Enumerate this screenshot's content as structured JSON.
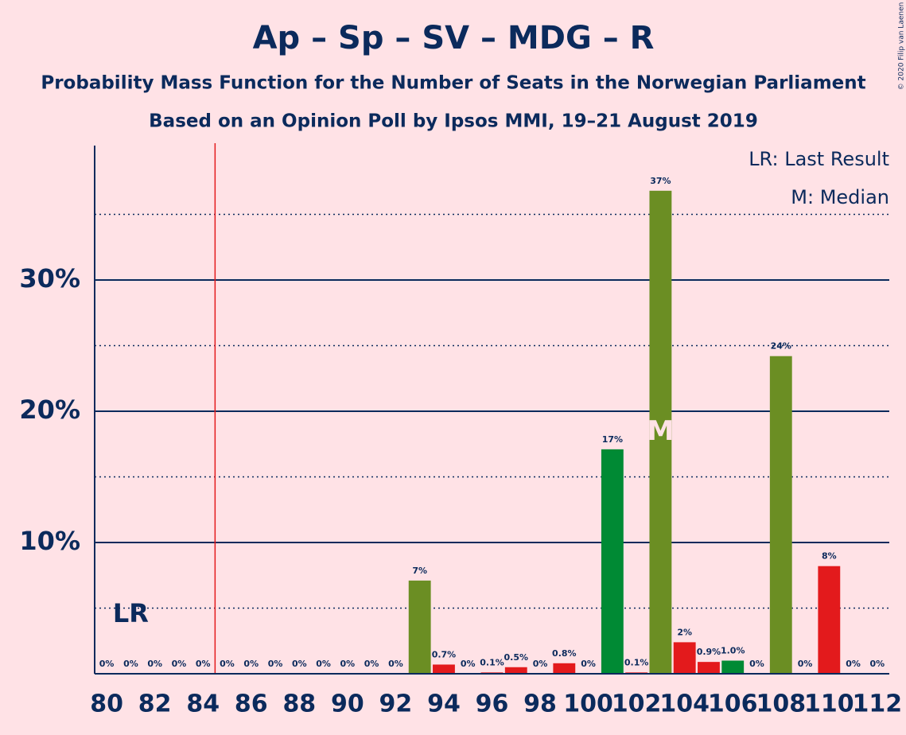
{
  "chart_data": {
    "type": "bar",
    "title": "Ap – Sp – SV – MDG – R",
    "subtitle": "Probability Mass Function for the Number of Seats in the Norwegian Parliament",
    "subtitle2": "Based on an Opinion Poll by Ipsos MMI, 19–21 August 2019",
    "x": [
      80,
      81,
      82,
      83,
      84,
      85,
      86,
      87,
      88,
      89,
      90,
      91,
      92,
      93,
      94,
      95,
      96,
      97,
      98,
      99,
      100,
      101,
      102,
      103,
      104,
      105,
      106,
      107,
      108,
      109,
      110,
      111,
      112
    ],
    "values": [
      0,
      0,
      0,
      0,
      0,
      0,
      0,
      0,
      0,
      0,
      0,
      0,
      0,
      7.1,
      0.7,
      0,
      0.1,
      0.5,
      0,
      0.8,
      0,
      17.1,
      0.1,
      36.8,
      2.4,
      0.9,
      1.0,
      0,
      24.2,
      0,
      8.2,
      0,
      0
    ],
    "value_labels": [
      "0%",
      "0%",
      "0%",
      "0%",
      "0%",
      "0%",
      "0%",
      "0%",
      "0%",
      "0%",
      "0%",
      "0%",
      "0%",
      "7%",
      "0.7%",
      "0%",
      "0.1%",
      "0.5%",
      "0%",
      "0.8%",
      "0%",
      "17%",
      "0.1%",
      "37%",
      "2%",
      "0.9%",
      "1.0%",
      "0%",
      "24%",
      "0%",
      "8%",
      "0%",
      "0%"
    ],
    "colors": [
      "#e31a1c",
      "#e31a1c",
      "#e31a1c",
      "#e31a1c",
      "#e31a1c",
      "#e31a1c",
      "#e31a1c",
      "#e31a1c",
      "#e31a1c",
      "#e31a1c",
      "#e31a1c",
      "#e31a1c",
      "#e31a1c",
      "#6b8e23",
      "#e31a1c",
      "#e31a1c",
      "#e31a1c",
      "#e31a1c",
      "#e31a1c",
      "#e31a1c",
      "#e31a1c",
      "#008a34",
      "#e31a1c",
      "#6b8e23",
      "#e31a1c",
      "#e31a1c",
      "#008a34",
      "#e31a1c",
      "#6b8e23",
      "#e31a1c",
      "#e31a1c",
      "#e31a1c",
      "#e31a1c"
    ],
    "xlim": [
      79.5,
      112.5
    ],
    "xticks": [
      80,
      82,
      84,
      86,
      88,
      90,
      92,
      94,
      96,
      98,
      100,
      102,
      104,
      106,
      108,
      110,
      112
    ],
    "ylim": [
      0,
      40
    ],
    "yticks": [
      {
        "value": 10,
        "label": "10%"
      },
      {
        "value": 20,
        "label": "20%"
      },
      {
        "value": 30,
        "label": "30%"
      }
    ],
    "minor_gridlines": [
      5,
      15,
      25,
      35
    ],
    "last_result_line": 84.5,
    "last_result_label": "LR",
    "median": 103,
    "median_label": "M",
    "legend": [
      "LR: Last Result",
      "M: Median"
    ],
    "copyright": "© 2020 Filip van Laenen"
  }
}
